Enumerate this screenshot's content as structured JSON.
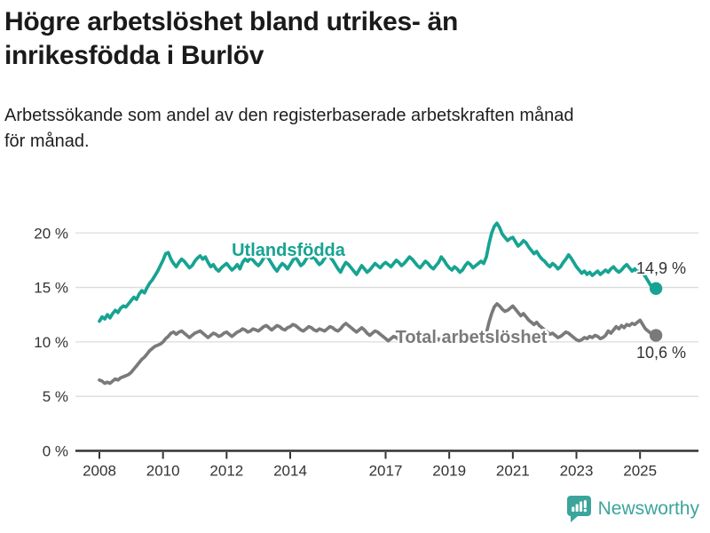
{
  "header": {
    "title_lines": [
      "Högre arbetslöshet bland utrikes- än",
      "inrikesfödda i Burlöv"
    ],
    "subtitle_lines": [
      "Arbetssökande som andel av den registerbaserade arbetskraften månad",
      "för månad."
    ]
  },
  "footer": {
    "brand": "Newsworthy"
  },
  "colors": {
    "foreign_line": "#17a392",
    "total_line": "#7a7a7a",
    "axis": "#333333",
    "grid": "#dcdcdc",
    "value_label": "#333333",
    "brand": "#3ba59c"
  },
  "chart_data": {
    "type": "line",
    "title": "Högre arbetslöshet bland utrikes- än inrikesfödda i Burlöv",
    "subtitle": "Arbetssökande som andel av den registerbaserade arbetskraften månad för månad.",
    "x_unit": "year-month (monthly from 2008-01 to 2025-07)",
    "y_unit": "%",
    "ylim": [
      0,
      22
    ],
    "grid": true,
    "x_ticks": [
      {
        "value": 2008,
        "label": "2008"
      },
      {
        "value": 2010,
        "label": "2010"
      },
      {
        "value": 2012,
        "label": "2012"
      },
      {
        "value": 2014,
        "label": "2014"
      },
      {
        "value": 2017,
        "label": "2017"
      },
      {
        "value": 2019,
        "label": "2019"
      },
      {
        "value": 2021,
        "label": "2021"
      },
      {
        "value": 2023,
        "label": "2023"
      },
      {
        "value": 2025,
        "label": "2025"
      }
    ],
    "y_ticks": [
      {
        "value": 0,
        "label": "0 %"
      },
      {
        "value": 5,
        "label": "5 %"
      },
      {
        "value": 10,
        "label": "10 %"
      },
      {
        "value": 15,
        "label": "15 %"
      },
      {
        "value": 20,
        "label": "20 %"
      }
    ],
    "series": [
      {
        "name": "Utlandsfödda",
        "color": "#17a392",
        "end_label": "14,9 %",
        "end_value": 14.9,
        "start_year": 2008,
        "values": [
          11.9,
          12.3,
          12.1,
          12.5,
          12.2,
          12.6,
          12.9,
          12.7,
          13.1,
          13.3,
          13.2,
          13.5,
          13.8,
          14.1,
          13.9,
          14.4,
          14.7,
          14.5,
          15.0,
          15.4,
          15.7,
          16.1,
          16.5,
          17.0,
          17.5,
          18.1,
          18.2,
          17.6,
          17.2,
          16.9,
          17.3,
          17.6,
          17.4,
          17.1,
          16.8,
          17.0,
          17.4,
          17.7,
          17.9,
          17.6,
          17.8,
          17.3,
          16.9,
          17.1,
          16.7,
          16.5,
          16.8,
          17.0,
          17.2,
          16.9,
          16.6,
          16.8,
          17.1,
          16.7,
          17.3,
          17.6,
          17.4,
          17.7,
          17.5,
          17.2,
          17.0,
          17.3,
          17.7,
          17.9,
          17.6,
          17.2,
          16.8,
          16.5,
          16.9,
          17.2,
          17.0,
          16.7,
          17.1,
          17.5,
          17.8,
          17.4,
          17.0,
          17.2,
          17.6,
          17.9,
          17.7,
          17.8,
          17.4,
          17.1,
          17.3,
          17.7,
          17.9,
          17.8,
          17.5,
          17.1,
          16.7,
          16.4,
          16.9,
          17.3,
          17.1,
          16.8,
          16.5,
          16.2,
          16.6,
          17.0,
          16.7,
          16.4,
          16.6,
          16.9,
          17.2,
          17.0,
          16.8,
          17.1,
          17.3,
          17.1,
          16.9,
          17.2,
          17.5,
          17.3,
          17.0,
          17.2,
          17.5,
          17.8,
          17.6,
          17.3,
          17.0,
          16.8,
          17.1,
          17.4,
          17.2,
          16.9,
          16.7,
          17.0,
          17.3,
          17.8,
          17.5,
          17.1,
          16.8,
          16.6,
          16.9,
          16.7,
          16.4,
          16.6,
          17.0,
          17.3,
          17.1,
          16.8,
          17.0,
          17.2,
          17.4,
          17.2,
          17.8,
          19.0,
          20.0,
          20.6,
          20.9,
          20.5,
          19.9,
          19.6,
          19.3,
          19.5,
          19.6,
          19.2,
          18.8,
          19.0,
          19.3,
          19.1,
          18.7,
          18.4,
          18.1,
          18.3,
          17.9,
          17.6,
          17.4,
          17.1,
          16.9,
          17.2,
          17.0,
          16.7,
          16.9,
          17.3,
          17.6,
          18.0,
          17.7,
          17.3,
          16.9,
          16.6,
          16.3,
          16.5,
          16.2,
          16.4,
          16.1,
          16.3,
          16.5,
          16.2,
          16.4,
          16.6,
          16.4,
          16.7,
          16.9,
          16.6,
          16.4,
          16.6,
          16.9,
          17.1,
          16.8,
          16.5,
          16.7,
          16.4,
          16.6,
          16.3,
          16.0,
          15.6,
          15.2,
          15.0,
          14.9
        ]
      },
      {
        "name": "Total arbetslöshet",
        "color": "#7a7a7a",
        "end_label": "10,6 %",
        "end_value": 10.6,
        "start_year": 2008,
        "values": [
          6.5,
          6.4,
          6.2,
          6.3,
          6.2,
          6.4,
          6.6,
          6.5,
          6.7,
          6.8,
          6.9,
          7.0,
          7.2,
          7.5,
          7.8,
          8.1,
          8.4,
          8.6,
          8.9,
          9.2,
          9.4,
          9.6,
          9.7,
          9.8,
          10.0,
          10.3,
          10.5,
          10.8,
          10.9,
          10.7,
          10.9,
          11.0,
          10.8,
          10.6,
          10.4,
          10.6,
          10.8,
          10.9,
          11.0,
          10.8,
          10.6,
          10.4,
          10.6,
          10.8,
          10.7,
          10.5,
          10.6,
          10.8,
          10.9,
          10.7,
          10.5,
          10.7,
          10.9,
          11.0,
          11.2,
          11.1,
          10.9,
          11.0,
          11.2,
          11.1,
          11.0,
          11.2,
          11.4,
          11.5,
          11.3,
          11.1,
          11.3,
          11.5,
          11.4,
          11.2,
          11.1,
          11.3,
          11.4,
          11.6,
          11.5,
          11.3,
          11.1,
          11.0,
          11.2,
          11.4,
          11.3,
          11.1,
          11.0,
          11.2,
          11.1,
          11.0,
          11.2,
          11.4,
          11.3,
          11.1,
          11.0,
          11.2,
          11.5,
          11.7,
          11.5,
          11.3,
          11.1,
          10.9,
          11.1,
          11.3,
          11.1,
          10.8,
          10.6,
          10.8,
          11.0,
          10.9,
          10.7,
          10.5,
          10.3,
          10.1,
          10.3,
          10.5,
          10.4,
          10.2,
          10.4,
          10.6,
          10.8,
          10.7,
          10.5,
          10.4,
          10.5,
          10.7,
          10.6,
          10.4,
          10.2,
          10.3,
          10.5,
          10.4,
          10.2,
          10.3,
          10.1,
          10.0,
          9.9,
          10.0,
          10.2,
          10.1,
          9.9,
          10.0,
          10.2,
          10.4,
          10.3,
          10.1,
          10.2,
          10.3,
          10.4,
          10.3,
          10.8,
          11.8,
          12.6,
          13.2,
          13.5,
          13.3,
          13.0,
          12.8,
          12.9,
          13.1,
          13.3,
          13.0,
          12.7,
          12.4,
          12.6,
          12.3,
          12.0,
          11.8,
          11.6,
          11.8,
          11.5,
          11.3,
          11.1,
          10.9,
          10.7,
          10.8,
          10.6,
          10.4,
          10.5,
          10.7,
          10.9,
          10.8,
          10.6,
          10.4,
          10.2,
          10.1,
          10.2,
          10.4,
          10.3,
          10.5,
          10.4,
          10.6,
          10.5,
          10.3,
          10.4,
          10.6,
          11.0,
          10.8,
          11.1,
          11.4,
          11.2,
          11.5,
          11.3,
          11.6,
          11.5,
          11.7,
          11.6,
          11.8,
          12.0,
          11.6,
          11.2,
          11.0,
          10.8,
          10.7,
          10.6
        ]
      }
    ]
  }
}
